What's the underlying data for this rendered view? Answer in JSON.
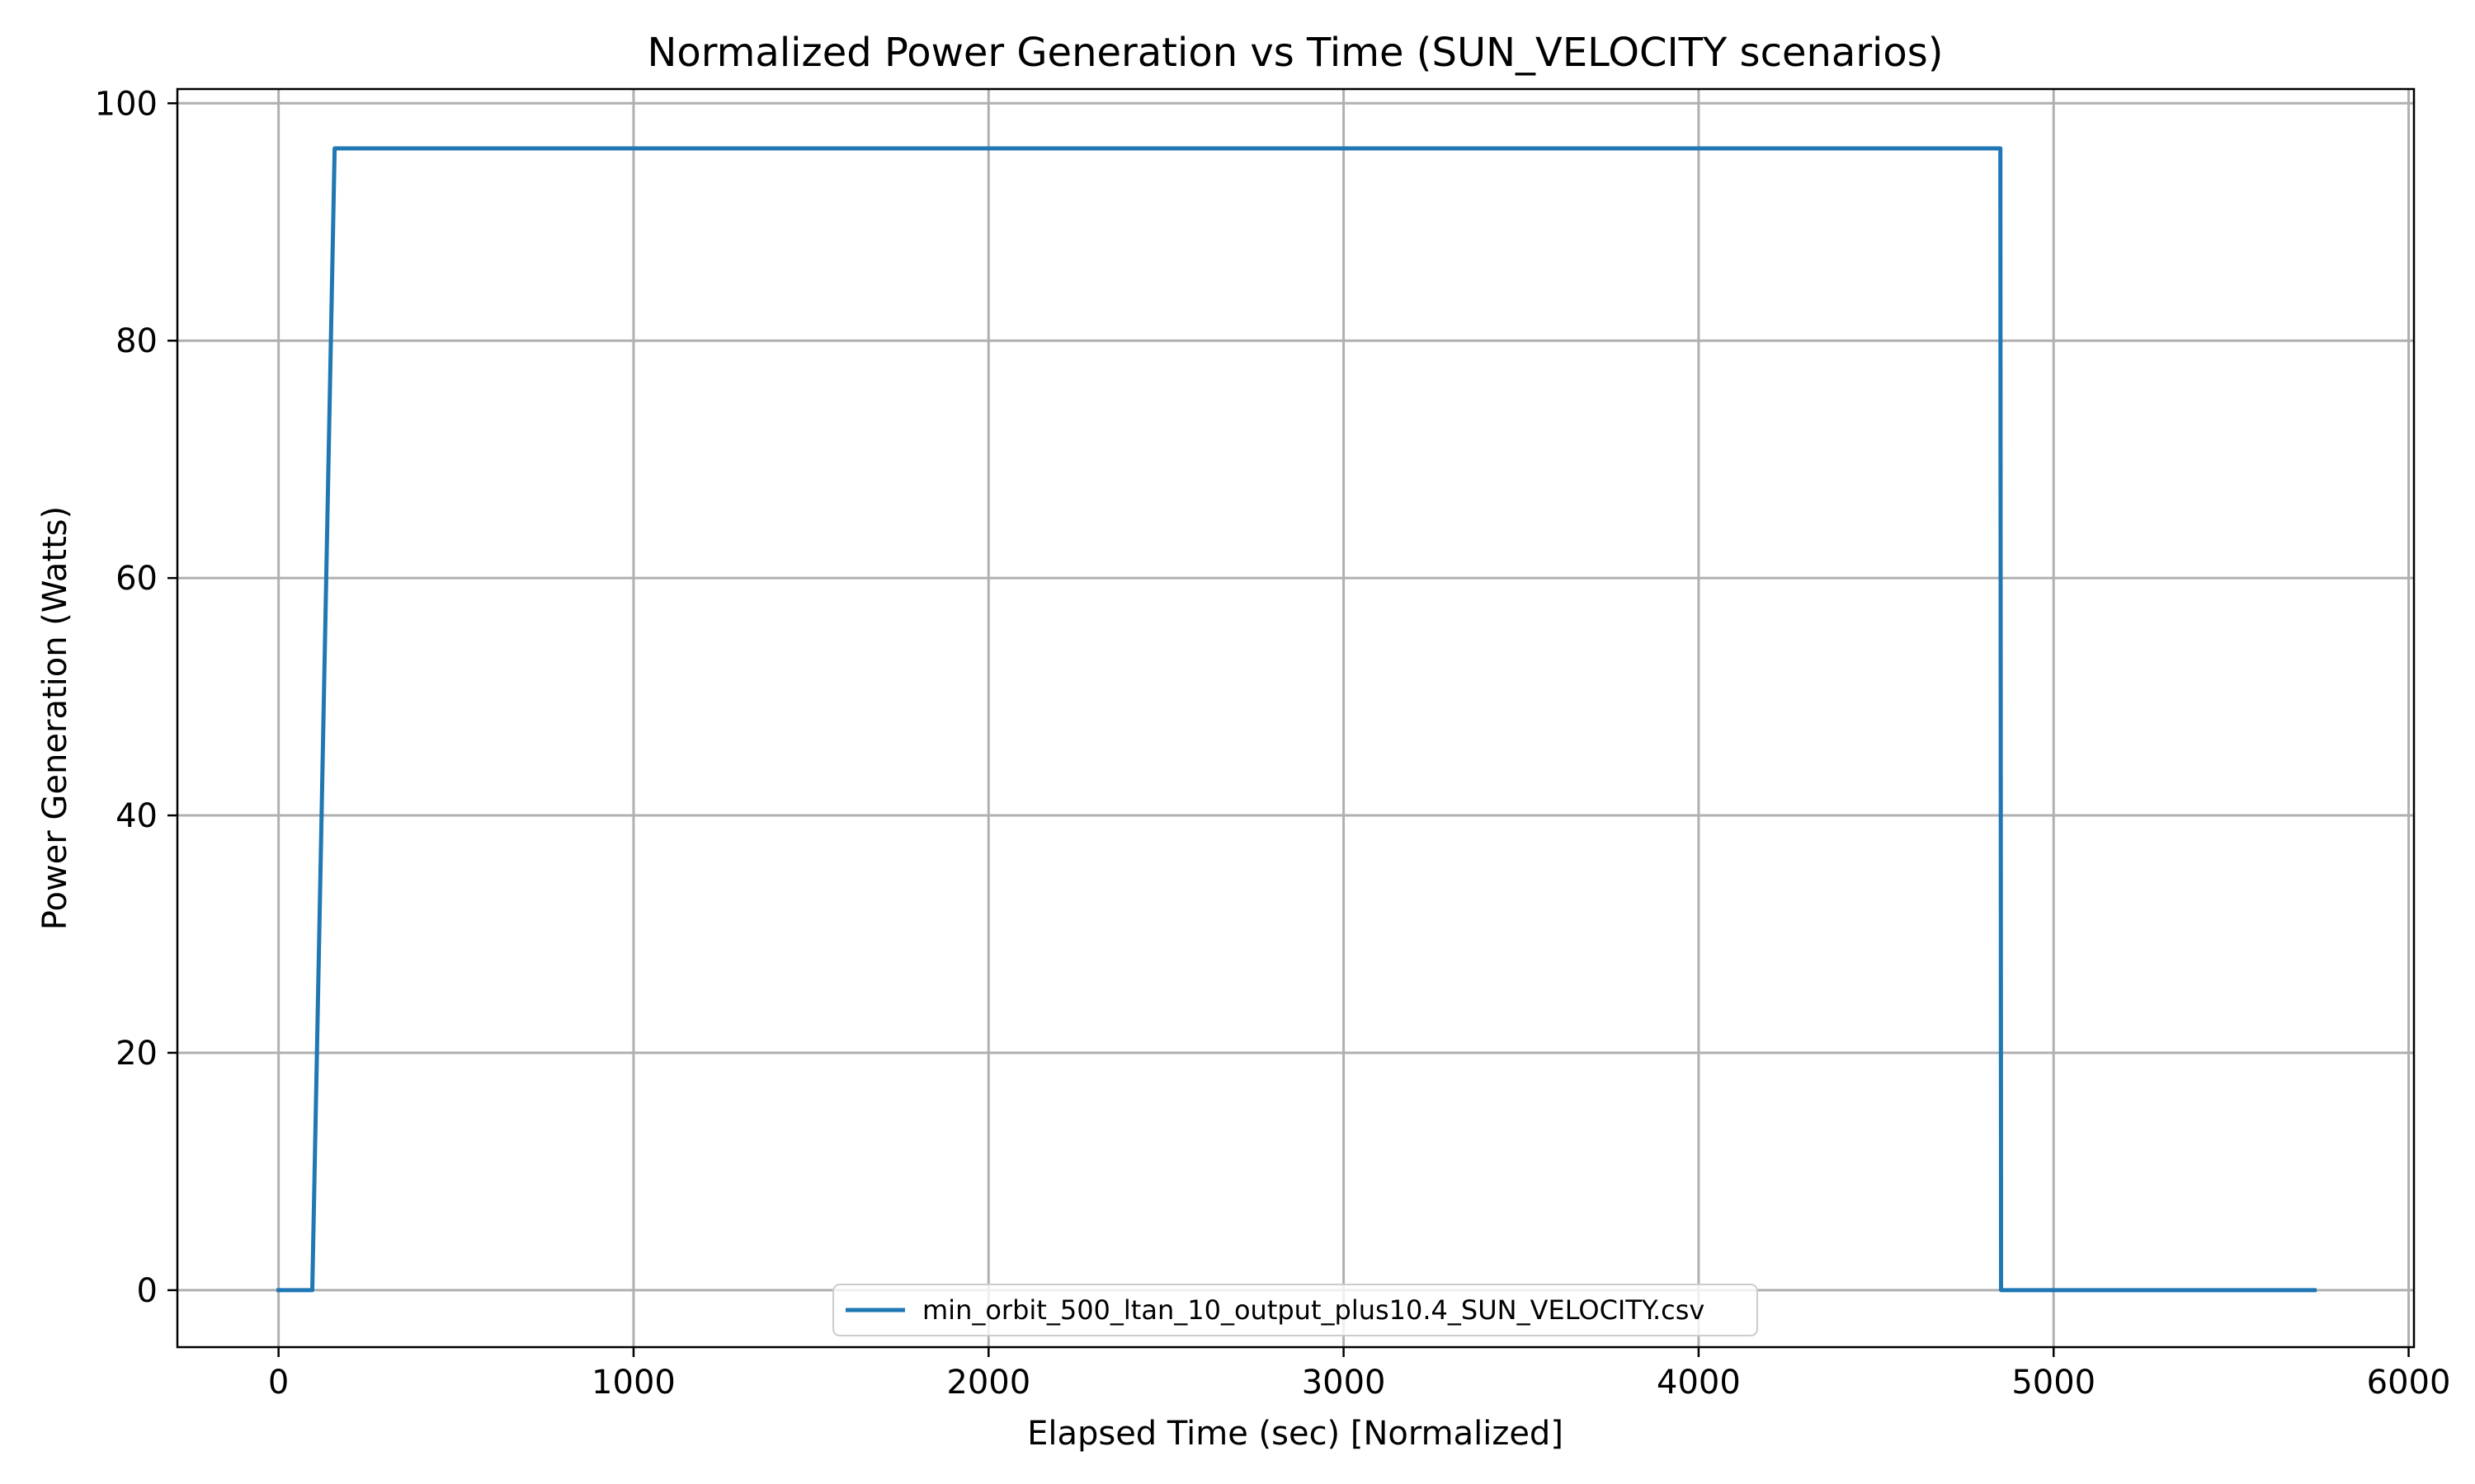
{
  "chart_data": {
    "type": "line",
    "title": "Normalized Power Generation vs Time (SUN_VELOCITY scenarios)",
    "xlabel": "Elapsed Time (sec) [Normalized]",
    "ylabel": "Power Generation (Watts)",
    "xlim": [
      -285,
      6015
    ],
    "ylim": [
      -4.8,
      101.2
    ],
    "xticks": [
      0,
      1000,
      2000,
      3000,
      4000,
      5000,
      6000
    ],
    "yticks": [
      0,
      20,
      40,
      60,
      80,
      100
    ],
    "grid": true,
    "legend_position": "lower center",
    "series": [
      {
        "name": "min_orbit_500_ltan_10_output_plus10.4_SUN_VELOCITY.csv",
        "color": "#1f77b4",
        "x": [
          0,
          95,
          158,
          4850,
          4852,
          5735
        ],
        "y": [
          0,
          0,
          96.2,
          96.2,
          0,
          0
        ]
      }
    ]
  }
}
